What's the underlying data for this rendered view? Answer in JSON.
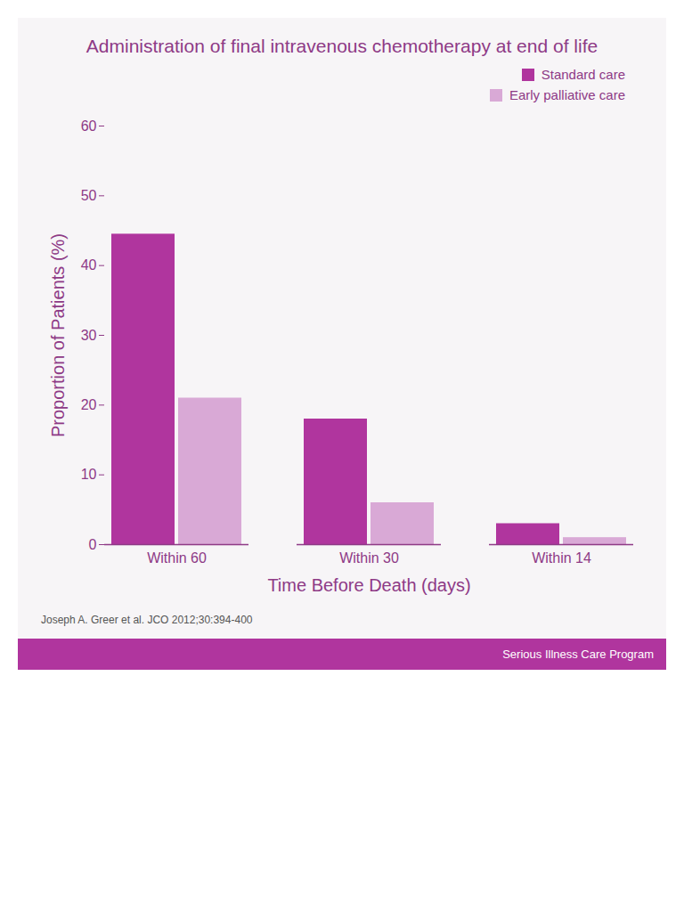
{
  "chart_data": {
    "type": "bar",
    "title": "Administration of final intravenous chemotherapy at end of life",
    "x_label": "Time Before Death (days)",
    "y_label": "Proportion of Patients (%)",
    "categories": [
      "Within 60",
      "Within 30",
      "Within 14"
    ],
    "series": [
      {
        "name": "Standard care",
        "color": "#b0359e",
        "values": [
          44.5,
          18,
          3
        ]
      },
      {
        "name": "Early palliative care",
        "color": "#d9a9d6",
        "values": [
          21,
          6,
          1
        ]
      }
    ],
    "ylim": [
      0,
      60
    ],
    "yticks": [
      0,
      10,
      20,
      30,
      40,
      50,
      60
    ],
    "grid": false,
    "legend": "top-right",
    "source": "Joseph A. Greer et al. JCO 2012;30:394-400",
    "footer": "Serious Illness Care Program"
  }
}
